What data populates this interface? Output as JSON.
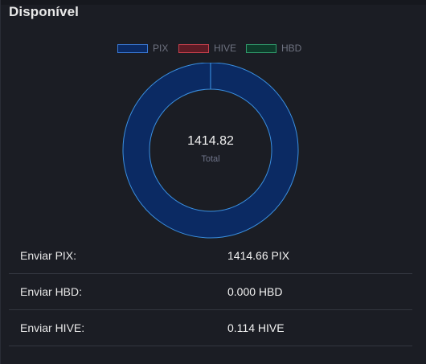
{
  "panel": {
    "title": "Disponível"
  },
  "legend": [
    {
      "label": "PIX",
      "fill": "#0b2a63",
      "border": "#3a79d6"
    },
    {
      "label": "HIVE",
      "fill": "#5c1b25",
      "border": "#c9404d"
    },
    {
      "label": "HBD",
      "fill": "#0e3b2a",
      "border": "#2f9a6b"
    }
  ],
  "chart_data": {
    "type": "pie",
    "variant": "doughnut",
    "categories": [
      "PIX",
      "HIVE",
      "HBD"
    ],
    "values": [
      1414.66,
      0.114,
      0.0
    ],
    "center_value": "1414.82",
    "center_label": "Total",
    "colors": [
      "#0b2a63",
      "#c9404d",
      "#2f9a6b"
    ],
    "border_color": "#3a8fe0",
    "legend_position": "top"
  },
  "rows": [
    {
      "label": "Enviar PIX:",
      "value": "1414.66 PIX"
    },
    {
      "label": "Enviar HBD:",
      "value": "0.000 HBD"
    },
    {
      "label": "Enviar HIVE:",
      "value": "0.114 HIVE"
    }
  ]
}
